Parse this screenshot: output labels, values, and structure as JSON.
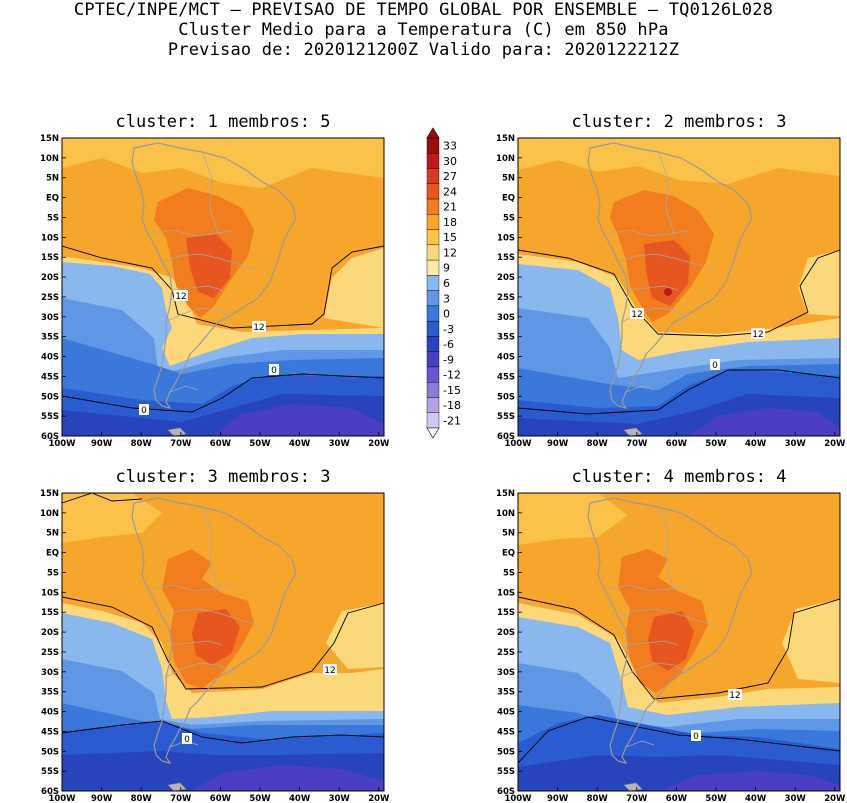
{
  "header": {
    "line1": "CPTEC/INPE/MCT – PREVISAO DE TEMPO GLOBAL POR ENSEMBLE – TQ0126L028",
    "line2": "Cluster Medio para a Temperatura (C) em 850 hPa",
    "line3": "Previsao de: 2020121200Z   Valido para: 2020122212Z"
  },
  "panels": [
    {
      "title": "cluster: 1  membros: 5"
    },
    {
      "title": "cluster: 2  membros: 3"
    },
    {
      "title": "cluster: 3  membros: 3"
    },
    {
      "title": "cluster: 4  membros: 4"
    }
  ],
  "lat_labels": [
    "15N",
    "10N",
    "5N",
    "EQ",
    "5S",
    "10S",
    "15S",
    "20S",
    "25S",
    "30S",
    "35S",
    "40S",
    "45S",
    "50S",
    "55S",
    "60S"
  ],
  "lon_labels": [
    "100W",
    "90W",
    "80W",
    "70W",
    "60W",
    "50W",
    "40W",
    "30W",
    "20W"
  ],
  "contour_labels": {
    "c12": "12",
    "c0": "0"
  },
  "colorbar": {
    "labels": [
      "33",
      "30",
      "27",
      "24",
      "21",
      "18",
      "15",
      "12",
      "9",
      "6",
      "3",
      "0",
      "-3",
      "-6",
      "-9",
      "-12",
      "-15",
      "-18",
      "-21"
    ],
    "colors": [
      "#9a0d10",
      "#c0191c",
      "#d93a22",
      "#e8561f",
      "#f27d1f",
      "#f7a62c",
      "#fbc24a",
      "#fbd97a",
      "#fbeaa8",
      "#8ab8ee",
      "#5f96e6",
      "#3b78db",
      "#2a5bd0",
      "#2744bd",
      "#4a3fc0",
      "#6b55cc",
      "#8e7ad8",
      "#b3a3e3",
      "#d4c8f0"
    ]
  }
}
